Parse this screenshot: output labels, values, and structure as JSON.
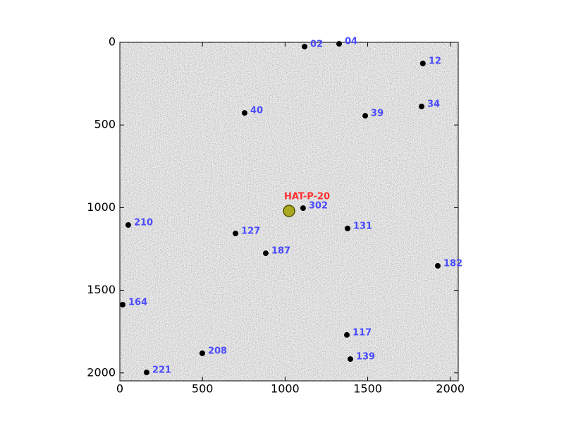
{
  "chart_data": {
    "type": "scatter",
    "xlim": [
      0,
      2048
    ],
    "ylim": [
      0,
      2048
    ],
    "y_inverted": true,
    "xticks": [
      0,
      500,
      1000,
      1500,
      2000
    ],
    "yticks": [
      0,
      500,
      1000,
      1500,
      2000
    ],
    "grid": false,
    "point_color": "#000000",
    "label_color": "#4a4aff",
    "points": {
      "x": [
        1118,
        1327,
        1834,
        1826,
        1485,
        755,
        1109,
        51,
        700,
        1378,
        883,
        1924,
        17,
        1374,
        1395,
        499,
        162
      ],
      "y": [
        26,
        9,
        128,
        388,
        444,
        427,
        1003,
        1105,
        1156,
        1126,
        1276,
        1352,
        1587,
        1770,
        1916,
        1881,
        1997
      ],
      "labels": [
        "02",
        "04",
        "12",
        "34",
        "39",
        "40",
        "302",
        "210",
        "127",
        "131",
        "187",
        "182",
        "164",
        "117",
        "139",
        "208",
        "221"
      ]
    },
    "target": {
      "x": 1024,
      "y": 1020,
      "label": "HAT-P-20",
      "color": "#ff3030",
      "marker_color": "#a0a000"
    }
  }
}
